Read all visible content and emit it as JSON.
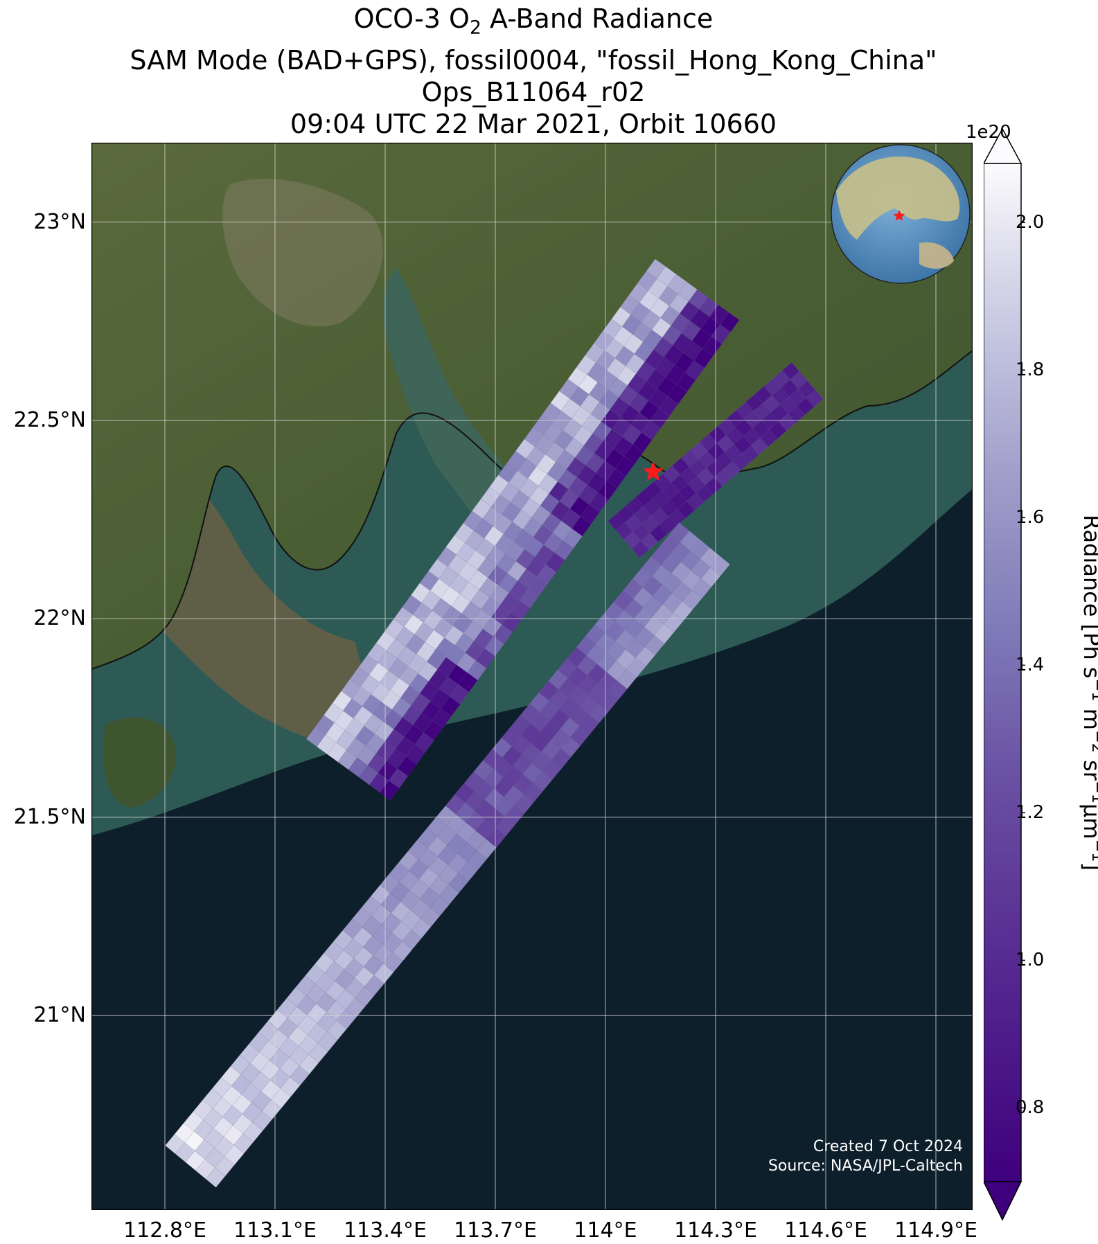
{
  "title": {
    "line1_pre": "OCO-3 O",
    "line1_sub": "2",
    "line1_post": " A-Band Radiance",
    "line2": "SAM Mode (BAD+GPS), fossil0004, \"fossil_Hong_Kong_China\"",
    "line3": "Ops_B11064_r02",
    "line4": "09:04 UTC 22 Mar 2021, Orbit 10660"
  },
  "axes": {
    "lat_labels": [
      "23°N",
      "22.5°N",
      "22°N",
      "21.5°N",
      "21°N"
    ],
    "lon_labels": [
      "112.8°E",
      "113.1°E",
      "113.4°E",
      "113.7°E",
      "114°E",
      "114.3°E",
      "114.6°E",
      "114.9°E"
    ],
    "lat_values": [
      23.0,
      22.5,
      22.0,
      21.5,
      21.0
    ],
    "lon_values": [
      112.8,
      113.1,
      113.4,
      113.7,
      114.0,
      114.3,
      114.6,
      114.9
    ],
    "lat_range": [
      20.51,
      23.2
    ],
    "lon_range": [
      112.6,
      115.0
    ],
    "grid": true
  },
  "target_marker": {
    "lat": 22.37,
    "lon": 114.13,
    "color": "#ff1a1a",
    "shape": "star"
  },
  "colorbar": {
    "label_parts": [
      "Radiance [Ph s",
      "−1",
      " m",
      "−2",
      " sr",
      "−1",
      "μm",
      "−1",
      "]"
    ],
    "exponent": "1e20",
    "ticks": [
      "0.8",
      "1.0",
      "1.2",
      "1.4",
      "1.6",
      "1.8",
      "2.0"
    ],
    "tick_values": [
      0.8,
      1.0,
      1.2,
      1.4,
      1.6,
      1.8,
      2.0
    ],
    "range": [
      0.7,
      2.08
    ],
    "colormap": "Purples_r",
    "extend": "both",
    "low_color": "#3f007d",
    "high_color": "#fcfbfd"
  },
  "credit": {
    "line1": "Created 7 Oct 2024",
    "line2": "Source: NASA/JPL-Caltech"
  },
  "inset_globe": {
    "description_icon": "globe-icon",
    "marker_color": "#ff1a1a"
  }
}
